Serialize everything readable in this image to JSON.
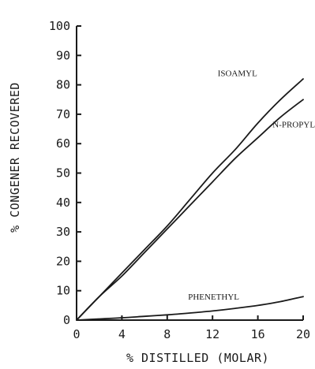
{
  "chart_data": {
    "type": "line",
    "title": "",
    "xlabel": "% DISTILLED (MOLAR)",
    "ylabel": "% CONGENER RECOVERED",
    "xlim": [
      0,
      20
    ],
    "ylim": [
      0,
      100
    ],
    "x_ticks": [
      0,
      4,
      8,
      12,
      16,
      20
    ],
    "x_tick_labels": [
      "0",
      "4",
      "8",
      "12",
      "16",
      "20"
    ],
    "y_ticks": [
      0,
      10,
      20,
      30,
      40,
      50,
      60,
      70,
      80,
      90,
      100
    ],
    "y_tick_labels": [
      "0",
      "10",
      "20",
      "30",
      "40",
      "50",
      "60",
      "70",
      "80",
      "90",
      "100"
    ],
    "grid": false,
    "legend": "none",
    "series": [
      {
        "name": "ISOAMYL",
        "x": [
          0,
          2,
          4,
          6,
          8,
          10,
          12,
          14,
          16,
          18,
          20
        ],
        "values": [
          0,
          8,
          16,
          24,
          32,
          41,
          50,
          58,
          67,
          75,
          82
        ]
      },
      {
        "name": "N-PROPYL",
        "x": [
          0,
          2,
          4,
          6,
          8,
          10,
          12,
          14,
          16,
          18,
          20
        ],
        "values": [
          0,
          8,
          15,
          23,
          31,
          39,
          47,
          55,
          62,
          69,
          75
        ]
      },
      {
        "name": "PHENETHYL",
        "x": [
          0,
          2,
          4,
          6,
          8,
          10,
          12,
          14,
          16,
          18,
          20
        ],
        "values": [
          0,
          0.4,
          0.8,
          1.3,
          1.8,
          2.4,
          3.1,
          4.0,
          5.0,
          6.3,
          8.0
        ]
      }
    ]
  }
}
